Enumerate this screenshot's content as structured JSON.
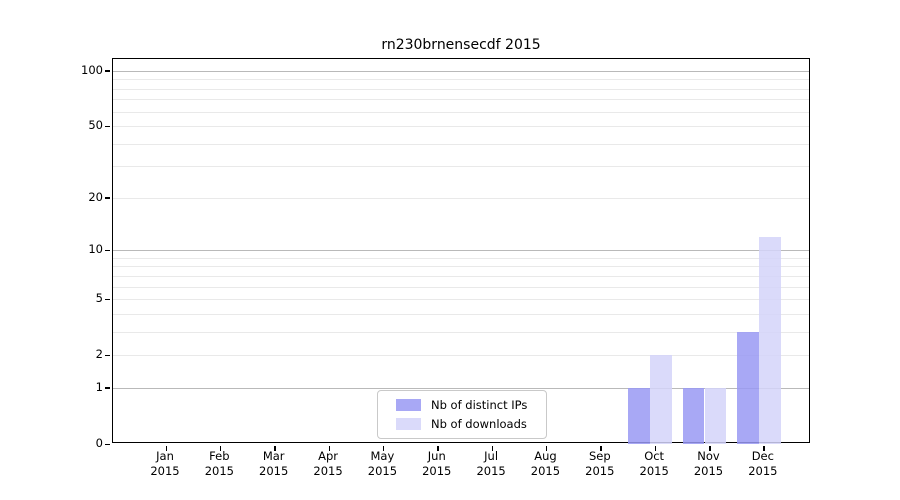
{
  "chart_data": {
    "type": "bar",
    "title": "rn230brnensecdf 2015",
    "x_months": [
      "Jan",
      "Feb",
      "Mar",
      "Apr",
      "May",
      "Jun",
      "Jul",
      "Aug",
      "Sep",
      "Oct",
      "Nov",
      "Dec"
    ],
    "x_year": "2015",
    "series": [
      {
        "key": "distinct-ips",
        "name": "Nb of distinct IPs",
        "color": "#9999f3",
        "values": [
          0,
          0,
          0,
          0,
          0,
          0,
          0,
          0,
          0,
          1,
          1,
          3
        ]
      },
      {
        "key": "downloads",
        "name": "Nb of downloads",
        "color": "#d4d4f9",
        "values": [
          0,
          0,
          0,
          0,
          0,
          0,
          0,
          0,
          0,
          2,
          1,
          12
        ]
      }
    ],
    "yscale": "log10(1+x)",
    "y_ticks": [
      0,
      1,
      2,
      5,
      10,
      20,
      50,
      100
    ],
    "y_gridlines_major": [
      1,
      10,
      100
    ],
    "y_gridlines_minor": [
      2,
      3,
      4,
      5,
      6,
      7,
      8,
      9,
      20,
      30,
      40,
      50,
      60,
      70,
      80,
      90
    ],
    "ylim": [
      0,
      116
    ],
    "grid": true,
    "legend_position": "lower-center",
    "colors": {
      "bar_alpha": 0.85,
      "grid_major": "#b9b9b9",
      "grid_minor": "#e9e9e9",
      "spine": "#000000"
    }
  }
}
